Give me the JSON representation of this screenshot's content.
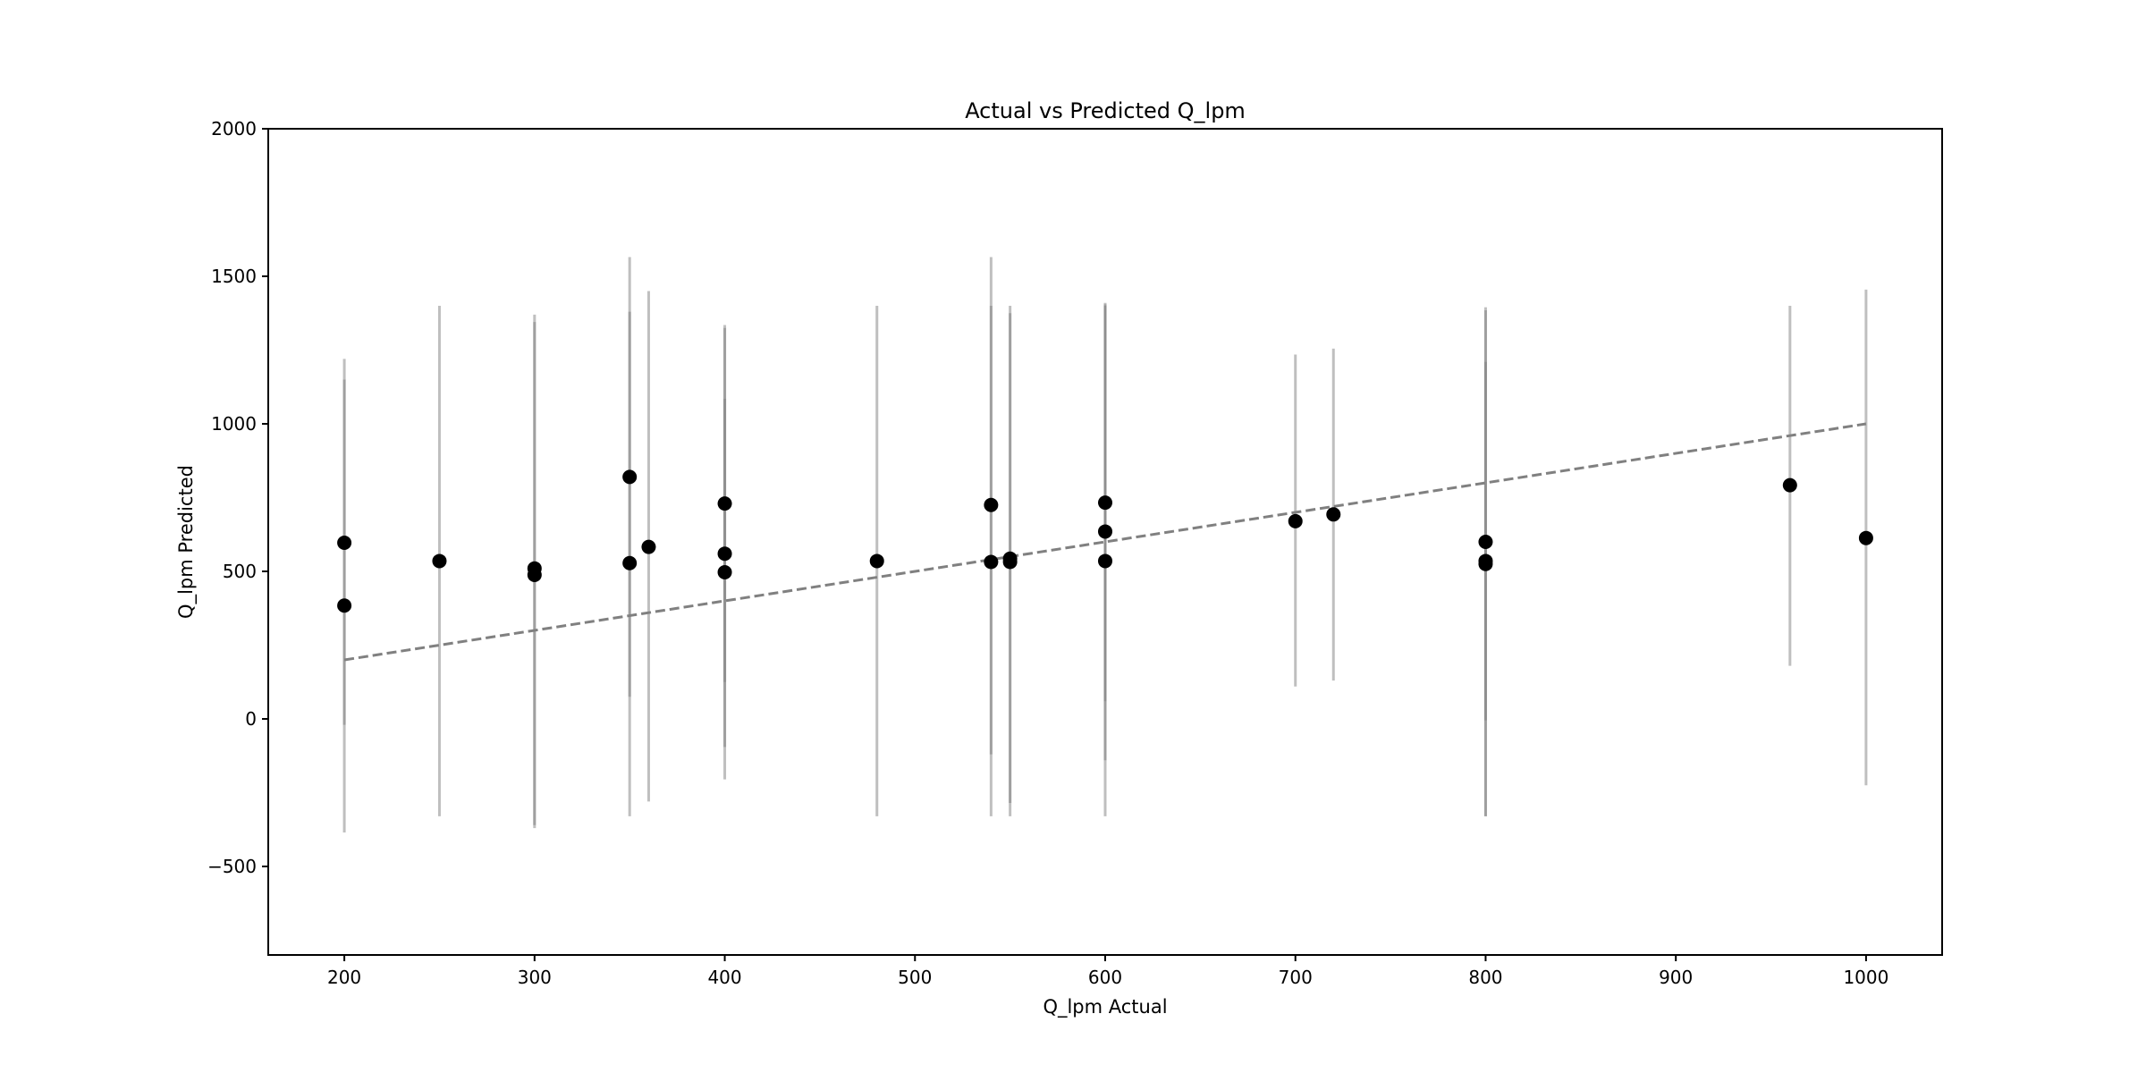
{
  "chart_data": {
    "type": "scatter",
    "title": "Actual vs Predicted Q_lpm",
    "xlabel": "Q_lpm Actual",
    "ylabel": "Q_lpm Predicted",
    "xlim": [
      160,
      1040
    ],
    "ylim": [
      -800,
      2000
    ],
    "xticks": [
      200,
      300,
      400,
      500,
      600,
      700,
      800,
      900,
      1000
    ],
    "yticks": [
      -500,
      0,
      500,
      1000,
      1500,
      2000
    ],
    "xtick_labels": [
      "200",
      "300",
      "400",
      "500",
      "600",
      "700",
      "800",
      "900",
      "1000"
    ],
    "ytick_labels": [
      "−500",
      "0",
      "500",
      "1000",
      "1500",
      "2000"
    ],
    "grid": false,
    "reference_line": {
      "style": "dashed",
      "color": "#808080",
      "x": [
        200,
        1000
      ],
      "y": [
        200,
        1000
      ]
    },
    "errorbar_color": "#808080",
    "marker_color": "#000000",
    "points": [
      {
        "x": 200,
        "y": 597,
        "lo": -385,
        "hi": 1220
      },
      {
        "x": 200,
        "y": 384,
        "lo": -20,
        "hi": 1150
      },
      {
        "x": 250,
        "y": 535,
        "lo": -330,
        "hi": 1400
      },
      {
        "x": 300,
        "y": 510,
        "lo": -370,
        "hi": 1370
      },
      {
        "x": 300,
        "y": 488,
        "lo": -360,
        "hi": 1345
      },
      {
        "x": 350,
        "y": 820,
        "lo": -330,
        "hi": 1565
      },
      {
        "x": 350,
        "y": 528,
        "lo": 75,
        "hi": 1380
      },
      {
        "x": 360,
        "y": 583,
        "lo": -280,
        "hi": 1450
      },
      {
        "x": 400,
        "y": 730,
        "lo": -205,
        "hi": 1335
      },
      {
        "x": 400,
        "y": 560,
        "lo": -95,
        "hi": 1325
      },
      {
        "x": 400,
        "y": 497,
        "lo": 125,
        "hi": 1085
      },
      {
        "x": 480,
        "y": 535,
        "lo": -330,
        "hi": 1400
      },
      {
        "x": 540,
        "y": 725,
        "lo": -330,
        "hi": 1565
      },
      {
        "x": 540,
        "y": 532,
        "lo": -120,
        "hi": 1400
      },
      {
        "x": 550,
        "y": 543,
        "lo": -330,
        "hi": 1400
      },
      {
        "x": 550,
        "y": 532,
        "lo": -285,
        "hi": 1375
      },
      {
        "x": 600,
        "y": 733,
        "lo": -330,
        "hi": 1410
      },
      {
        "x": 600,
        "y": 635,
        "lo": -140,
        "hi": 1400
      },
      {
        "x": 600,
        "y": 535,
        "lo": 60,
        "hi": 1405
      },
      {
        "x": 700,
        "y": 670,
        "lo": 110,
        "hi": 1235
      },
      {
        "x": 720,
        "y": 693,
        "lo": 130,
        "hi": 1255
      },
      {
        "x": 800,
        "y": 600,
        "lo": -330,
        "hi": 1395
      },
      {
        "x": 800,
        "y": 535,
        "lo": -330,
        "hi": 1385
      },
      {
        "x": 800,
        "y": 525,
        "lo": -5,
        "hi": 1210
      },
      {
        "x": 960,
        "y": 792,
        "lo": 180,
        "hi": 1400
      },
      {
        "x": 1000,
        "y": 613,
        "lo": -225,
        "hi": 1455
      }
    ]
  }
}
